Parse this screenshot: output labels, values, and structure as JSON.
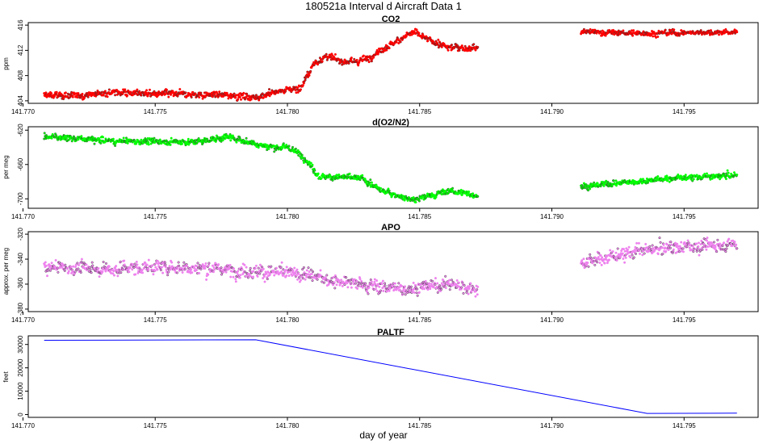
{
  "figure": {
    "title": "180521a   Interval d Aircraft Data 1",
    "xlabel": "day of year"
  },
  "chart_data": [
    {
      "type": "scatter",
      "title": "CO2",
      "ylabel": "ppm",
      "color": "#ff0000",
      "xlim": [
        141.7702,
        141.7978
      ],
      "ylim": [
        403.6,
        416.4
      ],
      "xticks": [
        141.77,
        141.775,
        141.78,
        141.785,
        141.79,
        141.795
      ],
      "xtick_labels": [
        "141.770",
        "141.775",
        "141.780",
        "141.785",
        "141.790",
        "141.795"
      ],
      "yticks": [
        404,
        408,
        412,
        416
      ],
      "ytick_labels": [
        "404",
        "408",
        "412",
        "416"
      ],
      "segments": [
        {
          "x": [
            141.7708,
            141.772,
            141.7735,
            141.775,
            141.7765,
            141.778,
            141.7788,
            141.7795,
            141.78,
            141.7805,
            141.781,
            141.7815,
            141.782,
            141.7825,
            141.783,
            141.7835,
            141.784,
            141.7845,
            141.7848,
            141.7852,
            141.786,
            141.7872
          ],
          "y": [
            404.9,
            404.8,
            405.4,
            405.1,
            405.0,
            404.9,
            404.5,
            405.3,
            405.8,
            406.0,
            409.9,
            411.1,
            410.3,
            410.1,
            410.7,
            412.0,
            413.1,
            414.4,
            414.9,
            413.9,
            412.5,
            412.4
          ],
          "noise": 0.45
        },
        {
          "x": [
            141.7911,
            141.793,
            141.795,
            141.797
          ],
          "y": [
            415.0,
            414.7,
            414.8,
            414.9
          ],
          "noise": 0.35
        }
      ]
    },
    {
      "type": "scatter",
      "title": "d(O2/N2)",
      "ylabel": "per meg",
      "color": "#00ff00",
      "xlim": [
        141.7702,
        141.7978
      ],
      "ylim": [
        -711,
        -616
      ],
      "xticks": [
        141.77,
        141.775,
        141.78,
        141.785,
        141.79,
        141.795
      ],
      "xtick_labels": [
        "141.770",
        "141.775",
        "141.780",
        "141.785",
        "141.790",
        "141.795"
      ],
      "yticks": [
        -700,
        -660,
        -620
      ],
      "ytick_labels": [
        "-700",
        "-660",
        "-620"
      ],
      "segments": [
        {
          "x": [
            141.7708,
            141.772,
            141.7735,
            141.775,
            141.7765,
            141.7778,
            141.7788,
            141.7795,
            141.78,
            141.7806,
            141.7812,
            141.782,
            141.7828,
            141.7835,
            141.7843,
            141.7848,
            141.7855,
            141.7862,
            141.7872
          ],
          "y": [
            -627,
            -630,
            -633,
            -633,
            -634,
            -628,
            -636,
            -640,
            -640,
            -650,
            -674,
            -675,
            -676,
            -690,
            -697,
            -702,
            -695,
            -691,
            -696
          ],
          "noise": 3.0
        },
        {
          "x": [
            141.7911,
            141.793,
            141.795,
            141.797
          ],
          "y": [
            -686,
            -680,
            -675,
            -673
          ],
          "noise": 3.0
        }
      ]
    },
    {
      "type": "scatter",
      "title": "APO",
      "ylabel": "approx. per meg",
      "color": "#ee82ee",
      "xlim": [
        141.7702,
        141.7978
      ],
      "ylim": [
        -382,
        -318
      ],
      "xticks": [
        141.77,
        141.775,
        141.78,
        141.785,
        141.79,
        141.795
      ],
      "xtick_labels": [
        "141.770",
        "141.775",
        "141.780",
        "141.785",
        "141.790",
        "141.795"
      ],
      "yticks": [
        -380,
        -360,
        -340,
        -320
      ],
      "ytick_labels": [
        "-380",
        "-360",
        "-340",
        "-320"
      ],
      "segments": [
        {
          "x": [
            141.7708,
            141.773,
            141.775,
            141.777,
            141.779,
            141.78,
            141.7815,
            141.783,
            141.7845,
            141.786,
            141.7872
          ],
          "y": [
            -346,
            -348,
            -346,
            -347,
            -350,
            -351,
            -356,
            -361,
            -364,
            -360,
            -363
          ],
          "noise": 4.5
        },
        {
          "x": [
            141.7911,
            141.793,
            141.795,
            141.797
          ],
          "y": [
            -343,
            -334,
            -330,
            -328
          ],
          "noise": 4.5
        }
      ]
    },
    {
      "type": "line",
      "title": "PALTF",
      "ylabel": "feet",
      "color": "#0000ff",
      "xlim": [
        141.7702,
        141.7978
      ],
      "ylim": [
        -1200,
        33700
      ],
      "xticks": [
        141.77,
        141.775,
        141.78,
        141.785,
        141.79,
        141.795
      ],
      "xtick_labels": [
        "141.770",
        "141.775",
        "141.780",
        "141.785",
        "141.790",
        "141.795"
      ],
      "yticks": [
        0,
        10000,
        20000,
        30000
      ],
      "ytick_labels": [
        "0",
        "10000",
        "20000",
        "30000"
      ],
      "x": [
        141.7708,
        141.7788,
        141.7936,
        141.797
      ],
      "y": [
        31800,
        32000,
        500,
        600
      ]
    }
  ]
}
